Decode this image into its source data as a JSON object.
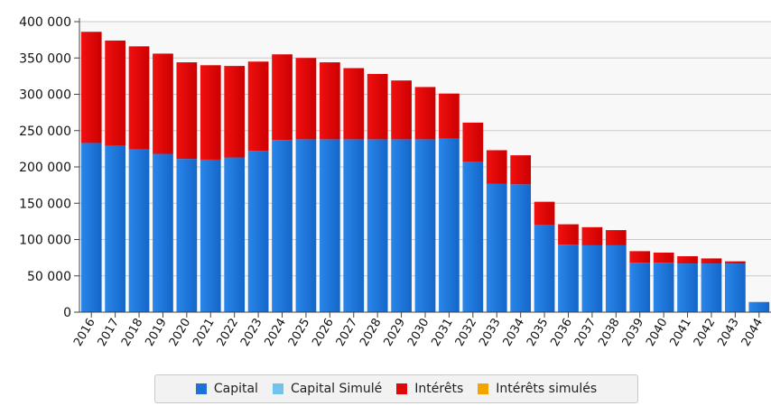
{
  "chart_data": {
    "type": "bar",
    "stacked": true,
    "categories": [
      "2016",
      "2017",
      "2018",
      "2019",
      "2020",
      "2021",
      "2022",
      "2023",
      "2024",
      "2025",
      "2026",
      "2027",
      "2028",
      "2029",
      "2030",
      "2031",
      "2032",
      "2033",
      "2034",
      "2035",
      "2036",
      "2037",
      "2038",
      "2039",
      "2040",
      "2041",
      "2042",
      "2043",
      "2044"
    ],
    "series": [
      {
        "name": "Capital",
        "color": "#1a74d8",
        "values": [
          233000,
          229000,
          224000,
          218000,
          211000,
          210000,
          213000,
          222000,
          237000,
          238000,
          238000,
          238000,
          238000,
          238000,
          238000,
          239000,
          207000,
          177000,
          176000,
          120000,
          93000,
          92000,
          92000,
          68000,
          68000,
          67000,
          67000,
          67000,
          14000
        ]
      },
      {
        "name": "Capital Simulé",
        "color": "#6fc3ee",
        "values": [
          0,
          0,
          0,
          0,
          0,
          0,
          0,
          0,
          0,
          0,
          0,
          0,
          0,
          0,
          0,
          0,
          0,
          0,
          0,
          0,
          0,
          0,
          0,
          0,
          0,
          0,
          0,
          0,
          0
        ]
      },
      {
        "name": "Intérêts",
        "color": "#e00808",
        "values": [
          153000,
          145000,
          142000,
          138000,
          133000,
          130000,
          126000,
          123000,
          118000,
          112000,
          106000,
          98000,
          90000,
          81000,
          72000,
          62000,
          54000,
          46000,
          40000,
          32000,
          28000,
          25000,
          21000,
          16000,
          14000,
          10000,
          7000,
          3000,
          0
        ]
      },
      {
        "name": "Intérêts simulés",
        "color": "#f5a300",
        "values": [
          0,
          0,
          0,
          0,
          0,
          0,
          0,
          0,
          0,
          0,
          0,
          0,
          0,
          0,
          0,
          0,
          0,
          0,
          0,
          0,
          0,
          0,
          0,
          0,
          0,
          0,
          0,
          0,
          0
        ]
      }
    ],
    "yticks": [
      "0",
      "50 000",
      "100 000",
      "150 000",
      "200 000",
      "250 000",
      "300 000",
      "350 000",
      "400 000"
    ],
    "ylim": [
      0,
      400000
    ],
    "grid": true,
    "legend": "bottom",
    "title": "",
    "xlabel": "",
    "ylabel": ""
  }
}
